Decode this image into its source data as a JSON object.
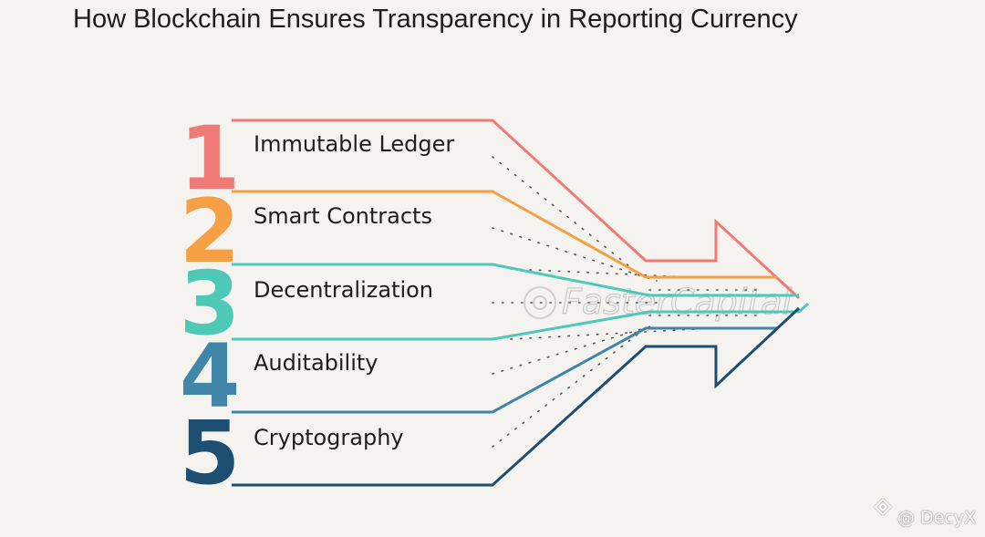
{
  "title": "How Blockchain Ensures Transparency in Reporting Currency",
  "items": [
    {
      "number": "1",
      "label": "Immutable Ledger",
      "color": "#f07a76"
    },
    {
      "number": "2",
      "label": "Smart Contracts",
      "color": "#f5a045"
    },
    {
      "number": "3",
      "label": "Decentralization",
      "color": "#4ec9b8"
    },
    {
      "number": "4",
      "label": "Auditability",
      "color": "#3f86a8"
    },
    {
      "number": "5",
      "label": "Cryptography",
      "color": "#1f4e73"
    }
  ],
  "watermark": "FasterCapital",
  "credit": "@ DecyX"
}
